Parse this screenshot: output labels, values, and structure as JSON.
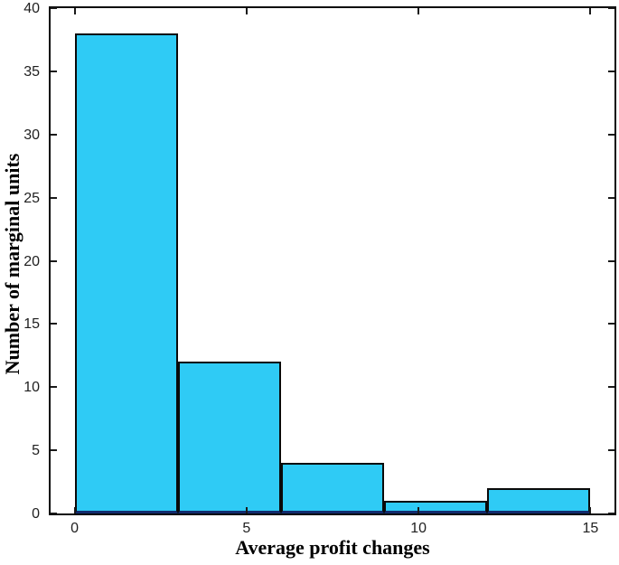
{
  "figure": {
    "background": "#ffffff",
    "axis_box_color": "#0a0a0a",
    "tick_color": "#1a1a1a",
    "tick_label_color": "#1f1f1f"
  },
  "chart_data": {
    "type": "bar",
    "subtype": "histogram",
    "title": "",
    "xlabel": "Average profit changes",
    "ylabel": "Number of marginal units",
    "bar_color": "#2fcbf5",
    "bar_edge_color": "#0a0a0a",
    "bar_baseline_color": "#122b6e",
    "bins": [
      {
        "start": 0,
        "end": 3,
        "count": 38
      },
      {
        "start": 3,
        "end": 6,
        "count": 12
      },
      {
        "start": 6,
        "end": 9,
        "count": 4
      },
      {
        "start": 9,
        "end": 12,
        "count": 1
      },
      {
        "start": 12,
        "end": 15,
        "count": 2
      }
    ],
    "categories": [
      "0-3",
      "3-6",
      "6-9",
      "9-12",
      "12-15"
    ],
    "values": [
      38,
      12,
      4,
      1,
      2
    ],
    "xlim": [
      -0.7,
      15.7
    ],
    "ylim": [
      0,
      40
    ],
    "xticks": [
      0,
      5,
      10,
      15
    ],
    "yticks": [
      0,
      5,
      10,
      15,
      20,
      25,
      30,
      35,
      40
    ],
    "grid": false,
    "legend": null,
    "tick_direction": "in",
    "box": true
  }
}
